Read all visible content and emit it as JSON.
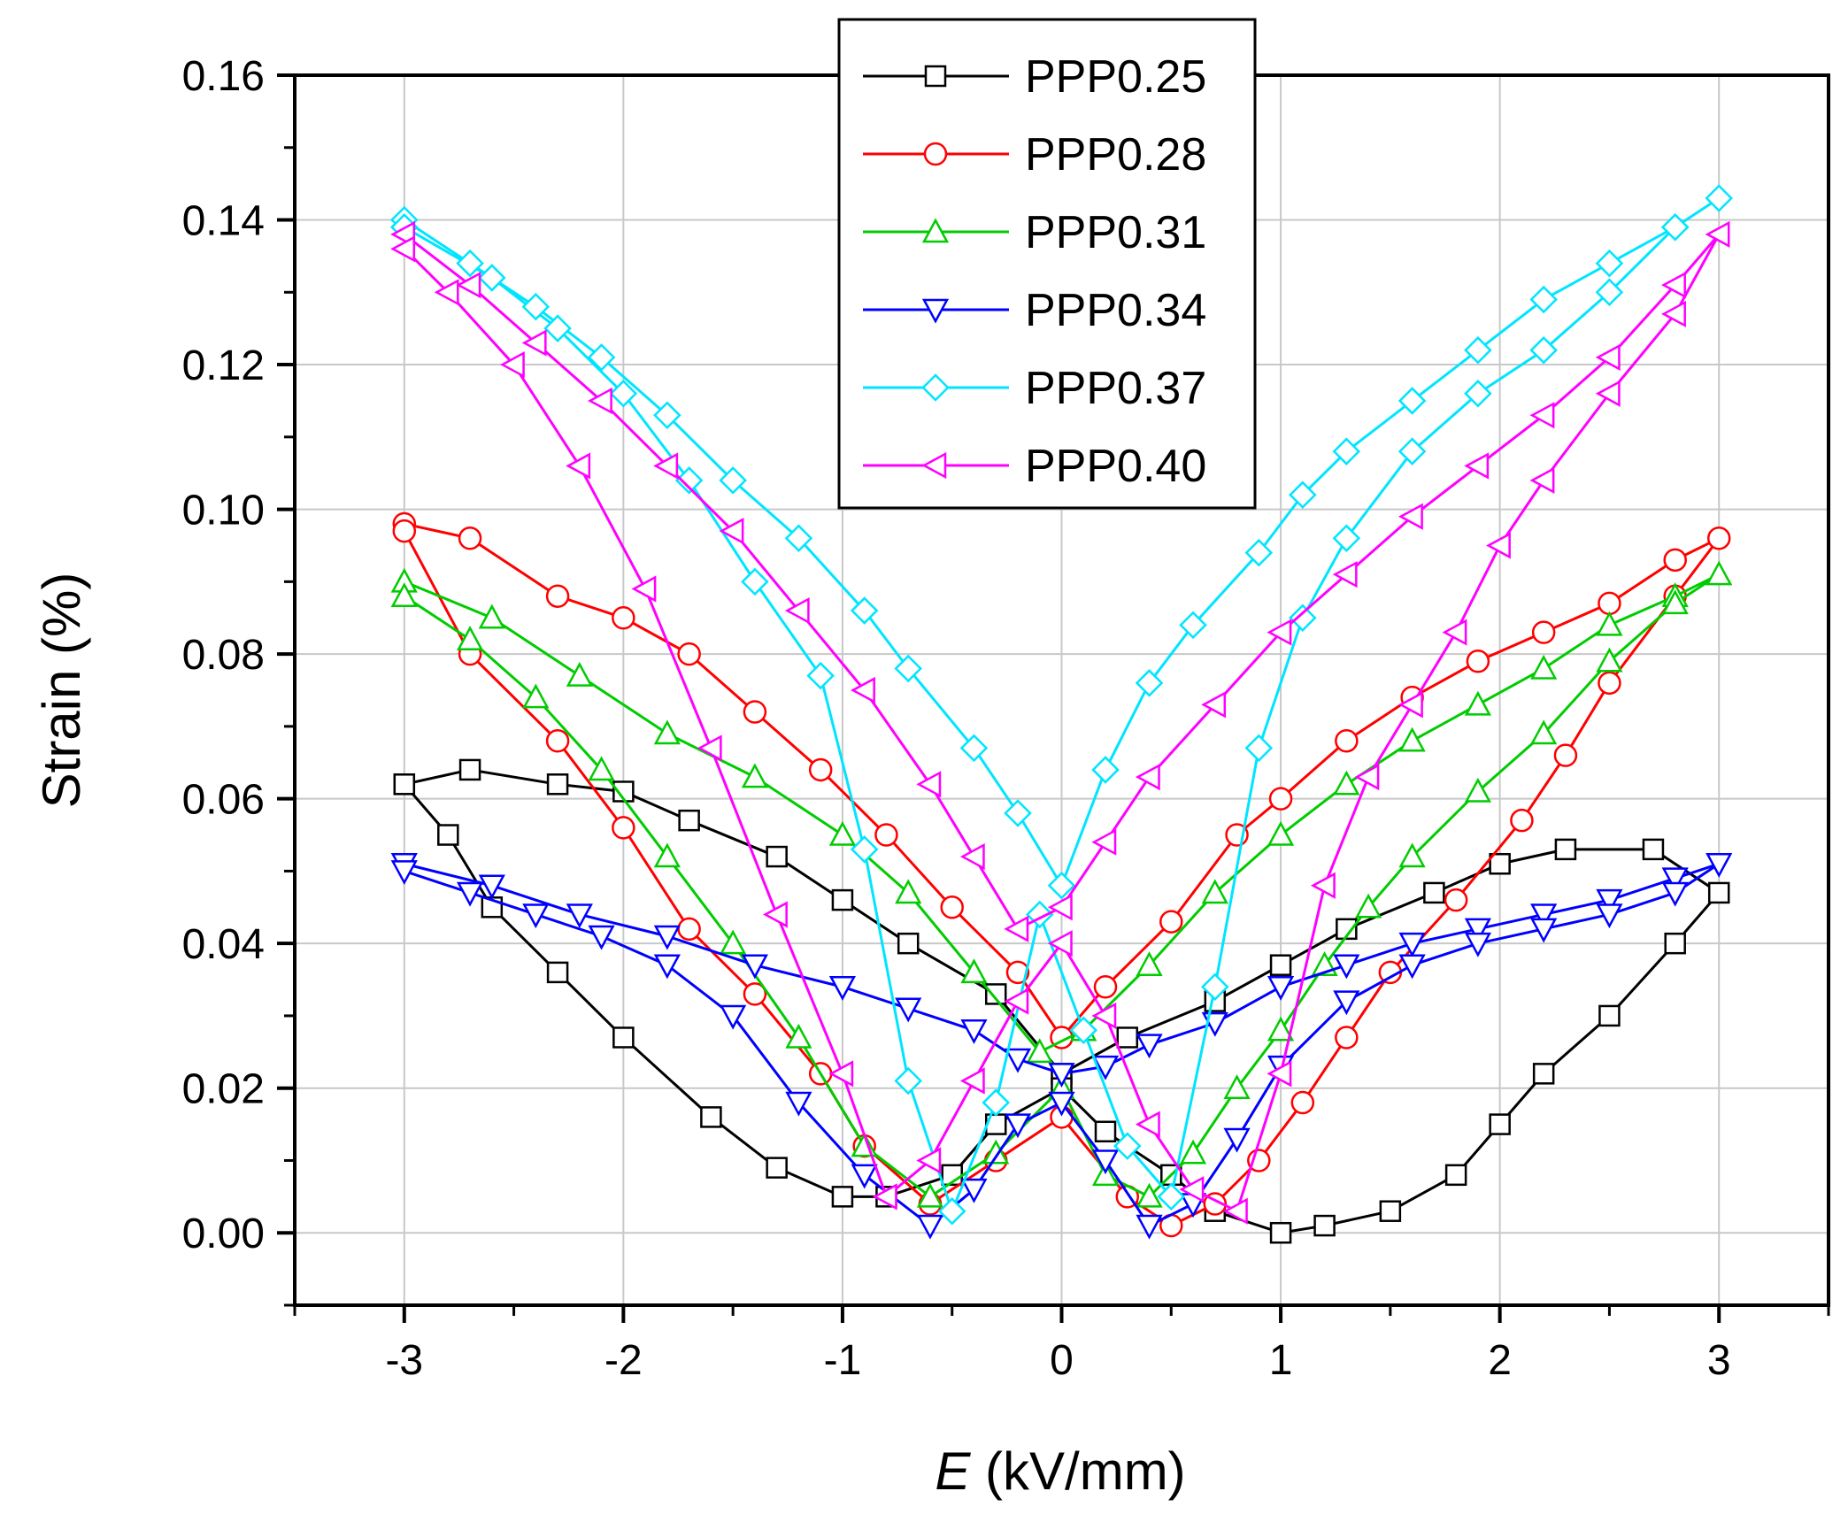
{
  "chart_data": {
    "type": "line",
    "xlabel_var": "E",
    "xlabel_unit": " (kV/mm)",
    "ylabel": "Strain (%)",
    "xlim": [
      -3.5,
      3.5
    ],
    "ylim": [
      -0.01,
      0.16
    ],
    "x_ticks": [
      -3,
      -2,
      -1,
      0,
      1,
      2,
      3
    ],
    "x_tick_labels": [
      "-3",
      "-2",
      "-1",
      "0",
      "1",
      "2",
      "3"
    ],
    "y_ticks": [
      0.0,
      0.02,
      0.04,
      0.06,
      0.08,
      0.1,
      0.12,
      0.14,
      0.16
    ],
    "y_tick_labels": [
      "0.00",
      "0.02",
      "0.04",
      "0.06",
      "0.08",
      "0.10",
      "0.12",
      "0.14",
      "0.16"
    ],
    "grid": true,
    "legend_position": "top-center",
    "series": [
      {
        "name": "PPP0.25",
        "color": "#000000",
        "marker": "square",
        "x": [
          -3.0,
          -2.7,
          -2.3,
          -2.0,
          -1.7,
          -1.3,
          -1.0,
          -0.7,
          -0.3,
          0.0,
          0.3,
          0.7,
          1.0,
          1.3,
          1.7,
          2.0,
          2.3,
          2.7,
          3.0,
          2.8,
          2.5,
          2.2,
          2.0,
          1.8,
          1.5,
          1.2,
          1.0,
          0.7,
          0.5,
          0.2,
          0.0,
          -0.3,
          -0.5,
          -0.8,
          -1.0,
          -1.3,
          -1.6,
          -2.0,
          -2.3,
          -2.6,
          -2.8,
          -3.0
        ],
        "y": [
          0.062,
          0.064,
          0.062,
          0.061,
          0.057,
          0.052,
          0.046,
          0.04,
          0.033,
          0.022,
          0.027,
          0.032,
          0.037,
          0.042,
          0.047,
          0.051,
          0.053,
          0.053,
          0.047,
          0.04,
          0.03,
          0.022,
          0.015,
          0.008,
          0.003,
          0.001,
          0.0,
          0.003,
          0.008,
          0.014,
          0.02,
          0.015,
          0.008,
          0.005,
          0.005,
          0.009,
          0.016,
          0.027,
          0.036,
          0.045,
          0.055,
          0.062
        ]
      },
      {
        "name": "PPP0.28",
        "color": "#ff0000",
        "marker": "circle",
        "x": [
          -3.0,
          -2.7,
          -2.3,
          -2.0,
          -1.7,
          -1.4,
          -1.1,
          -0.8,
          -0.5,
          -0.2,
          0.0,
          0.2,
          0.5,
          0.8,
          1.0,
          1.3,
          1.6,
          1.9,
          2.2,
          2.5,
          2.8,
          3.0,
          2.8,
          2.5,
          2.3,
          2.1,
          1.8,
          1.5,
          1.3,
          1.1,
          0.9,
          0.7,
          0.5,
          0.3,
          0.0,
          -0.3,
          -0.6,
          -0.9,
          -1.1,
          -1.4,
          -1.7,
          -2.0,
          -2.3,
          -2.7,
          -3.0
        ],
        "y": [
          0.098,
          0.096,
          0.088,
          0.085,
          0.08,
          0.072,
          0.064,
          0.055,
          0.045,
          0.036,
          0.027,
          0.034,
          0.043,
          0.055,
          0.06,
          0.068,
          0.074,
          0.079,
          0.083,
          0.087,
          0.093,
          0.096,
          0.088,
          0.076,
          0.066,
          0.057,
          0.046,
          0.036,
          0.027,
          0.018,
          0.01,
          0.004,
          0.001,
          0.005,
          0.016,
          0.01,
          0.004,
          0.012,
          0.022,
          0.033,
          0.042,
          0.056,
          0.068,
          0.08,
          0.097
        ]
      },
      {
        "name": "PPP0.31",
        "color": "#00cc00",
        "marker": "triangle-up",
        "x": [
          -3.0,
          -2.6,
          -2.2,
          -1.8,
          -1.4,
          -1.0,
          -0.7,
          -0.4,
          -0.1,
          0.1,
          0.4,
          0.7,
          1.0,
          1.3,
          1.6,
          1.9,
          2.2,
          2.5,
          2.8,
          3.0,
          2.8,
          2.5,
          2.2,
          1.9,
          1.6,
          1.4,
          1.2,
          1.0,
          0.8,
          0.6,
          0.4,
          0.2,
          0.0,
          -0.3,
          -0.6,
          -0.9,
          -1.2,
          -1.5,
          -1.8,
          -2.1,
          -2.4,
          -2.7,
          -3.0
        ],
        "y": [
          0.09,
          0.085,
          0.077,
          0.069,
          0.063,
          0.055,
          0.047,
          0.036,
          0.025,
          0.028,
          0.037,
          0.047,
          0.055,
          0.062,
          0.068,
          0.073,
          0.078,
          0.084,
          0.088,
          0.091,
          0.087,
          0.079,
          0.069,
          0.061,
          0.052,
          0.045,
          0.037,
          0.028,
          0.02,
          0.011,
          0.005,
          0.008,
          0.02,
          0.011,
          0.005,
          0.012,
          0.027,
          0.04,
          0.052,
          0.064,
          0.074,
          0.082,
          0.088
        ]
      },
      {
        "name": "PPP0.34",
        "color": "#0000ff",
        "marker": "triangle-down",
        "x": [
          -3.0,
          -2.6,
          -2.2,
          -1.8,
          -1.4,
          -1.0,
          -0.7,
          -0.4,
          -0.2,
          0.0,
          0.2,
          0.4,
          0.7,
          1.0,
          1.3,
          1.6,
          1.9,
          2.2,
          2.5,
          2.8,
          3.0,
          2.8,
          2.5,
          2.2,
          1.9,
          1.6,
          1.3,
          1.0,
          0.8,
          0.6,
          0.4,
          0.2,
          0.0,
          -0.2,
          -0.4,
          -0.6,
          -0.9,
          -1.2,
          -1.5,
          -1.8,
          -2.1,
          -2.4,
          -2.7,
          -3.0
        ],
        "y": [
          0.051,
          0.048,
          0.044,
          0.041,
          0.037,
          0.034,
          0.031,
          0.028,
          0.024,
          0.022,
          0.023,
          0.026,
          0.029,
          0.034,
          0.037,
          0.04,
          0.042,
          0.044,
          0.046,
          0.049,
          0.051,
          0.047,
          0.044,
          0.042,
          0.04,
          0.037,
          0.032,
          0.023,
          0.013,
          0.004,
          0.001,
          0.01,
          0.018,
          0.015,
          0.006,
          0.001,
          0.008,
          0.018,
          0.03,
          0.037,
          0.041,
          0.044,
          0.047,
          0.05
        ]
      },
      {
        "name": "PPP0.37",
        "color": "#00e5ff",
        "marker": "diamond",
        "x": [
          -3.0,
          -2.7,
          -2.4,
          -2.1,
          -1.8,
          -1.5,
          -1.2,
          -0.9,
          -0.7,
          -0.4,
          -0.2,
          0.0,
          0.2,
          0.4,
          0.6,
          0.9,
          1.1,
          1.3,
          1.6,
          1.9,
          2.2,
          2.5,
          2.8,
          3.0,
          2.8,
          2.5,
          2.2,
          1.9,
          1.6,
          1.3,
          1.1,
          0.9,
          0.7,
          0.5,
          0.3,
          0.1,
          -0.1,
          -0.3,
          -0.5,
          -0.7,
          -0.9,
          -1.1,
          -1.4,
          -1.7,
          -2.0,
          -2.3,
          -2.6,
          -3.0
        ],
        "y": [
          0.14,
          0.134,
          0.128,
          0.121,
          0.113,
          0.104,
          0.096,
          0.086,
          0.078,
          0.067,
          0.058,
          0.048,
          0.064,
          0.076,
          0.084,
          0.094,
          0.102,
          0.108,
          0.115,
          0.122,
          0.129,
          0.134,
          0.139,
          0.143,
          0.139,
          0.13,
          0.122,
          0.116,
          0.108,
          0.096,
          0.085,
          0.067,
          0.034,
          0.005,
          0.012,
          0.028,
          0.044,
          0.018,
          0.003,
          0.021,
          0.053,
          0.077,
          0.09,
          0.104,
          0.116,
          0.125,
          0.132,
          0.139
        ]
      },
      {
        "name": "PPP0.40",
        "color": "#ff00ff",
        "marker": "triangle-left",
        "x": [
          -3.0,
          -2.7,
          -2.4,
          -2.1,
          -1.8,
          -1.5,
          -1.2,
          -0.9,
          -0.6,
          -0.4,
          -0.2,
          0.0,
          0.2,
          0.4,
          0.7,
          1.0,
          1.3,
          1.6,
          1.9,
          2.2,
          2.5,
          2.8,
          3.0,
          2.8,
          2.5,
          2.2,
          2.0,
          1.8,
          1.6,
          1.4,
          1.2,
          1.0,
          0.8,
          0.6,
          0.4,
          0.2,
          0.0,
          -0.2,
          -0.4,
          -0.6,
          -0.8,
          -1.0,
          -1.3,
          -1.6,
          -1.9,
          -2.2,
          -2.5,
          -2.8,
          -3.0
        ],
        "y": [
          0.138,
          0.131,
          0.123,
          0.115,
          0.106,
          0.097,
          0.086,
          0.075,
          0.062,
          0.052,
          0.042,
          0.045,
          0.054,
          0.063,
          0.073,
          0.083,
          0.091,
          0.099,
          0.106,
          0.113,
          0.121,
          0.131,
          0.138,
          0.127,
          0.116,
          0.104,
          0.095,
          0.083,
          0.073,
          0.063,
          0.048,
          0.022,
          0.003,
          0.006,
          0.015,
          0.03,
          0.04,
          0.032,
          0.021,
          0.01,
          0.005,
          0.022,
          0.044,
          0.067,
          0.089,
          0.106,
          0.12,
          0.13,
          0.136
        ]
      }
    ]
  }
}
